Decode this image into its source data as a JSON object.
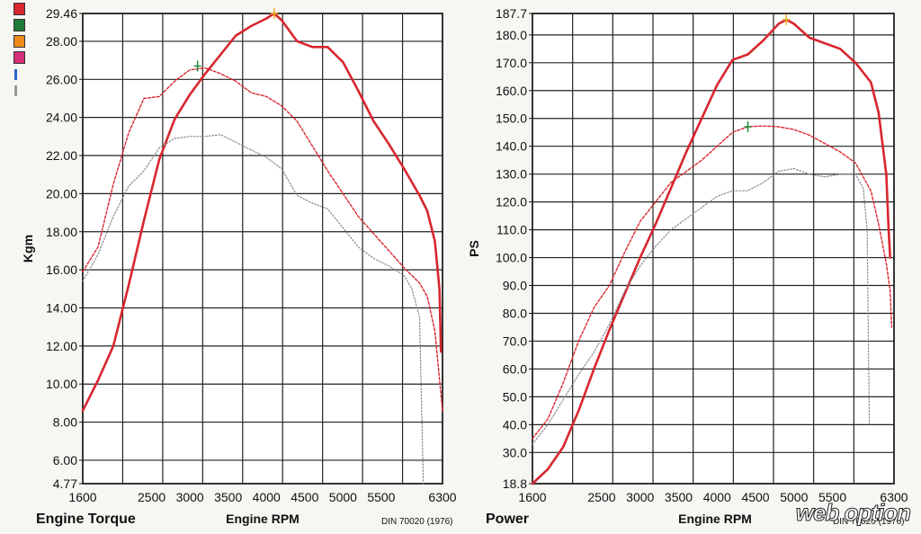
{
  "legend": {
    "swatches": [
      "#d8262e",
      "#1f7a3a",
      "#f08a1c",
      "#d6307a"
    ],
    "minis": [
      "#2a63c9",
      "#999999"
    ]
  },
  "watermark": "web option",
  "chart_data": [
    {
      "type": "line",
      "title": "Engine Torque",
      "xlabel": "Engine RPM",
      "ylabel": "Kgm",
      "footnote": "DIN 70020 (1976)",
      "xlim": [
        1600,
        6300
      ],
      "ylim": [
        4.77,
        29.46
      ],
      "x_ticks": [
        1600,
        2500,
        3000,
        3500,
        4000,
        4500,
        5000,
        5500,
        6300
      ],
      "y_ticks": [
        4.77,
        6.0,
        8.0,
        10.0,
        12.0,
        14.0,
        16.0,
        18.0,
        20.0,
        22.0,
        24.0,
        26.0,
        28.0,
        29.46
      ],
      "y_tick_labels": [
        "4.77",
        "6.00",
        "8.00",
        "10.00",
        "12.00",
        "14.00",
        "16.00",
        "18.00",
        "20.00",
        "22.00",
        "24.00",
        "26.00",
        "28.00",
        "29.46"
      ],
      "grid": true,
      "series": [
        {
          "style": "solid",
          "color": "#d8262e",
          "x": [
            1600,
            1800,
            2000,
            2200,
            2400,
            2600,
            2800,
            3000,
            3200,
            3400,
            3600,
            3800,
            4000,
            4100,
            4200,
            4400,
            4600,
            4800,
            5000,
            5200,
            5400,
            5600,
            5800,
            6000,
            6100,
            6200,
            6260,
            6280
          ],
          "y": [
            8.6,
            10.2,
            12.0,
            15.2,
            18.6,
            21.8,
            23.9,
            25.2,
            26.3,
            27.3,
            28.3,
            28.8,
            29.2,
            29.46,
            29.1,
            28.0,
            27.7,
            27.7,
            26.9,
            25.4,
            23.8,
            22.6,
            21.3,
            19.9,
            19.1,
            17.5,
            15.0,
            11.7
          ]
        },
        {
          "style": "dashed",
          "color": "#d8262e",
          "x": [
            1600,
            1800,
            2000,
            2200,
            2400,
            2600,
            2800,
            3000,
            3200,
            3400,
            3600,
            3800,
            4000,
            4200,
            4400,
            4600,
            4800,
            5000,
            5200,
            5400,
            5600,
            5800,
            6000,
            6100,
            6200,
            6300
          ],
          "y": [
            15.9,
            17.2,
            20.5,
            23.2,
            25.0,
            25.1,
            25.9,
            26.5,
            26.6,
            26.3,
            25.9,
            25.3,
            25.1,
            24.6,
            23.8,
            22.5,
            21.2,
            20.0,
            18.8,
            17.9,
            17.0,
            16.1,
            15.3,
            14.6,
            12.8,
            8.6
          ]
        },
        {
          "style": "dotted",
          "color": "#888888",
          "x": [
            1600,
            1800,
            2000,
            2200,
            2400,
            2600,
            2800,
            3000,
            3200,
            3400,
            3600,
            3800,
            4000,
            4200,
            4400,
            4600,
            4800,
            5000,
            5200,
            5400,
            5600,
            5800,
            5900,
            6000,
            6050
          ],
          "y": [
            15.4,
            16.8,
            18.8,
            20.4,
            21.2,
            22.4,
            22.9,
            23.0,
            23.0,
            23.1,
            22.7,
            22.3,
            21.9,
            21.3,
            19.9,
            19.5,
            19.2,
            18.2,
            17.2,
            16.6,
            16.2,
            15.7,
            15.0,
            13.5,
            4.77
          ]
        }
      ],
      "markers": [
        {
          "x": 3100,
          "y": 26.7,
          "color": "#1f8a3a"
        },
        {
          "x": 4100,
          "y": 29.46,
          "color": "#f0b020"
        }
      ]
    },
    {
      "type": "line",
      "title": "Power",
      "xlabel": "Engine RPM",
      "ylabel": "PS",
      "footnote": "DIN 70020 (1976)",
      "xlim": [
        1600,
        6300
      ],
      "ylim": [
        18.8,
        187.7
      ],
      "x_ticks": [
        1600,
        2500,
        3000,
        3500,
        4000,
        4500,
        5000,
        5500,
        6300
      ],
      "y_ticks": [
        18.8,
        30.0,
        40.0,
        50.0,
        60.0,
        70.0,
        80.0,
        90.0,
        100.0,
        110.0,
        120.0,
        130.0,
        140.0,
        150.0,
        160.0,
        170.0,
        180.0,
        187.7
      ],
      "y_tick_labels": [
        "18.8",
        "30.0",
        "40.0",
        "50.0",
        "60.0",
        "70.0",
        "80.0",
        "90.0",
        "100.0",
        "110.0",
        "120.0",
        "130.0",
        "140.0",
        "150.0",
        "160.0",
        "170.0",
        "180.0",
        "187.7"
      ],
      "grid": true,
      "series": [
        {
          "style": "solid",
          "color": "#d8262e",
          "x": [
            1600,
            1800,
            2000,
            2200,
            2400,
            2600,
            2800,
            3000,
            3200,
            3400,
            3600,
            3800,
            4000,
            4200,
            4400,
            4600,
            4800,
            4900,
            5000,
            5200,
            5400,
            5600,
            5800,
            6000,
            6100,
            6200,
            6230,
            6250
          ],
          "y": [
            18.8,
            24.0,
            32.0,
            45.0,
            60.0,
            74.0,
            87.0,
            100.0,
            112.0,
            125.0,
            138.0,
            150.0,
            162.0,
            171.0,
            173.0,
            178.0,
            184.0,
            185.5,
            184.0,
            179.0,
            177.0,
            175.0,
            170.0,
            163.0,
            152.0,
            130.0,
            110.0,
            100.0
          ]
        },
        {
          "style": "dashed",
          "color": "#d8262e",
          "x": [
            1600,
            1800,
            2000,
            2200,
            2400,
            2600,
            2800,
            3000,
            3200,
            3400,
            3600,
            3800,
            4000,
            4200,
            4400,
            4600,
            4800,
            5000,
            5200,
            5400,
            5600,
            5800,
            6000,
            6100,
            6200,
            6250,
            6270
          ],
          "y": [
            35.0,
            42.0,
            55.0,
            70.0,
            82.0,
            90.0,
            102.0,
            113.0,
            120.0,
            127.0,
            131.0,
            135.0,
            140.0,
            145.0,
            147.0,
            147.3,
            147.0,
            146.0,
            144.0,
            141.0,
            138.0,
            134.0,
            124.0,
            112.0,
            98.0,
            88.0,
            75.0
          ]
        },
        {
          "style": "dotted",
          "color": "#888888",
          "x": [
            1600,
            1800,
            2000,
            2200,
            2400,
            2600,
            2800,
            3000,
            3200,
            3400,
            3600,
            3800,
            4000,
            4200,
            4400,
            4600,
            4800,
            5000,
            5200,
            5400,
            5600,
            5800,
            5900,
            5950,
            5980
          ],
          "y": [
            33.0,
            40.0,
            49.0,
            58.0,
            66.0,
            76.0,
            88.0,
            97.0,
            104.0,
            110.0,
            114.0,
            118.0,
            122.0,
            124.0,
            124.0,
            127.0,
            131.0,
            132.0,
            130.0,
            129.0,
            130.0,
            130.0,
            125.0,
            110.0,
            40.0
          ]
        }
      ],
      "markers": [
        {
          "x": 4400,
          "y": 147.0,
          "color": "#1f8a3a"
        },
        {
          "x": 4900,
          "y": 185.5,
          "color": "#f0b020"
        }
      ]
    }
  ]
}
